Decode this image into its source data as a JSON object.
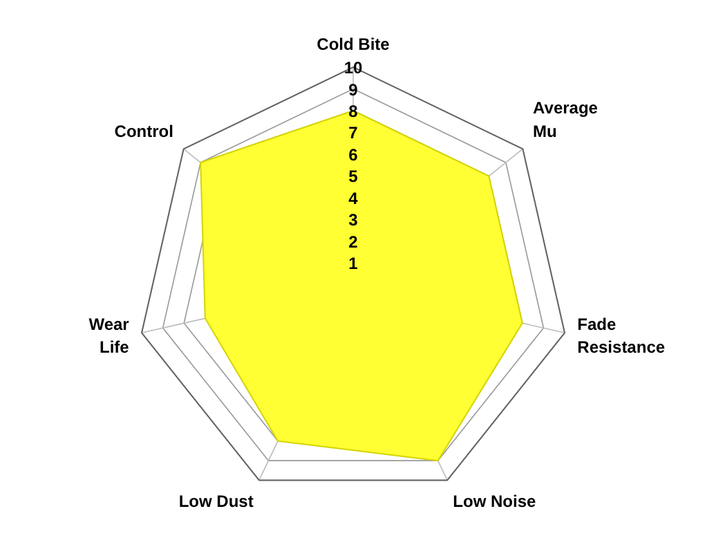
{
  "chart_data": {
    "type": "radar",
    "categories": [
      "Cold Bite",
      "Average Mu",
      "Fade Resistance",
      "Low Noise",
      "Low Dust",
      "Wear Life",
      "Control"
    ],
    "series": [
      {
        "color": "#ffff33",
        "values": [
          8,
          8,
          8,
          9,
          8,
          7,
          9
        ]
      }
    ],
    "ylim": [
      0,
      10
    ],
    "yticks": [
      1,
      2,
      3,
      4,
      5,
      6,
      7,
      8,
      9,
      10
    ],
    "grid": true
  }
}
